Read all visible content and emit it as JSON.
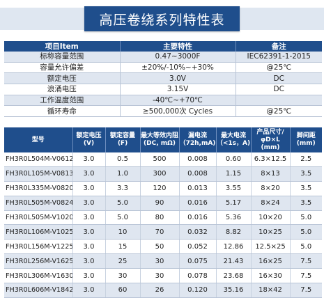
{
  "title": "高压卷绕系列特性表",
  "spec_table": {
    "headers": [
      "项目Item",
      "主要特性",
      "备注"
    ],
    "rows": [
      [
        "标称容量范围",
        "0.47~3000F",
        "IEC62391-1-2015"
      ],
      [
        "容量允许偏差",
        "±20%/-10%~+30%",
        "@25℃"
      ],
      [
        "额定电压",
        "3.0V",
        "DC"
      ],
      [
        "浪涌电压",
        "3.15V",
        "DC"
      ],
      [
        "工作温度范围",
        "-40℃~+70℃",
        ""
      ],
      [
        "循环寿命",
        "≥500,000次 Cycles",
        "@25℃"
      ]
    ]
  },
  "product_table": {
    "headers": [
      "型号",
      "额定电压 (V)",
      "额定容量 (F)",
      "最大等效内阻 (DC, mΩ)",
      "漏电流 （72h,mA)",
      "最大电流 （<1s，A)",
      "产品尺寸/ φD×L (mm)",
      "脚间距 (mm)"
    ],
    "rows": [
      [
        "FH3R0L504M-V0612",
        "3.0",
        "0.5",
        "500",
        "0.008",
        "0.60",
        "6.3×12.5",
        "2.5"
      ],
      [
        "FH3R0L105M-V0813",
        "3.0",
        "1.0",
        "300",
        "0.008",
        "1.15",
        "8×13",
        "3.5"
      ],
      [
        "FH3R0L335M-V0820",
        "3.0",
        "3.3",
        "120",
        "0.013",
        "3.55",
        "8×20",
        "3.5"
      ],
      [
        "FH3R0L505M-V0824",
        "3.0",
        "5.0",
        "90",
        "0.016",
        "5.17",
        "8×24",
        "3.5"
      ],
      [
        "FH3R0L505M-V1020",
        "3.0",
        "5.0",
        "80",
        "0.016",
        "5.36",
        "10×20",
        "5.0"
      ],
      [
        "FH3R0L106M-V1025",
        "3.0",
        "10",
        "70",
        "0.032",
        "8.82",
        "10×25",
        "5.0"
      ],
      [
        "FH3R0L156M-V1225",
        "3.0",
        "15",
        "50",
        "0.052",
        "12.86",
        "12.5×25",
        "5.0"
      ],
      [
        "FH3R0L256M-V1625",
        "3.0",
        "25",
        "30",
        "0.075",
        "21.43",
        "16×25",
        "7.5"
      ],
      [
        "FH3R0L306M-V1630",
        "3.0",
        "30",
        "30",
        "0.078",
        "23.68",
        "16×30",
        "7.5"
      ],
      [
        "FH3R0L606M-V1842",
        "3.0",
        "60",
        "26",
        "0.120",
        "35.16",
        "18×42",
        "7.5"
      ]
    ]
  }
}
